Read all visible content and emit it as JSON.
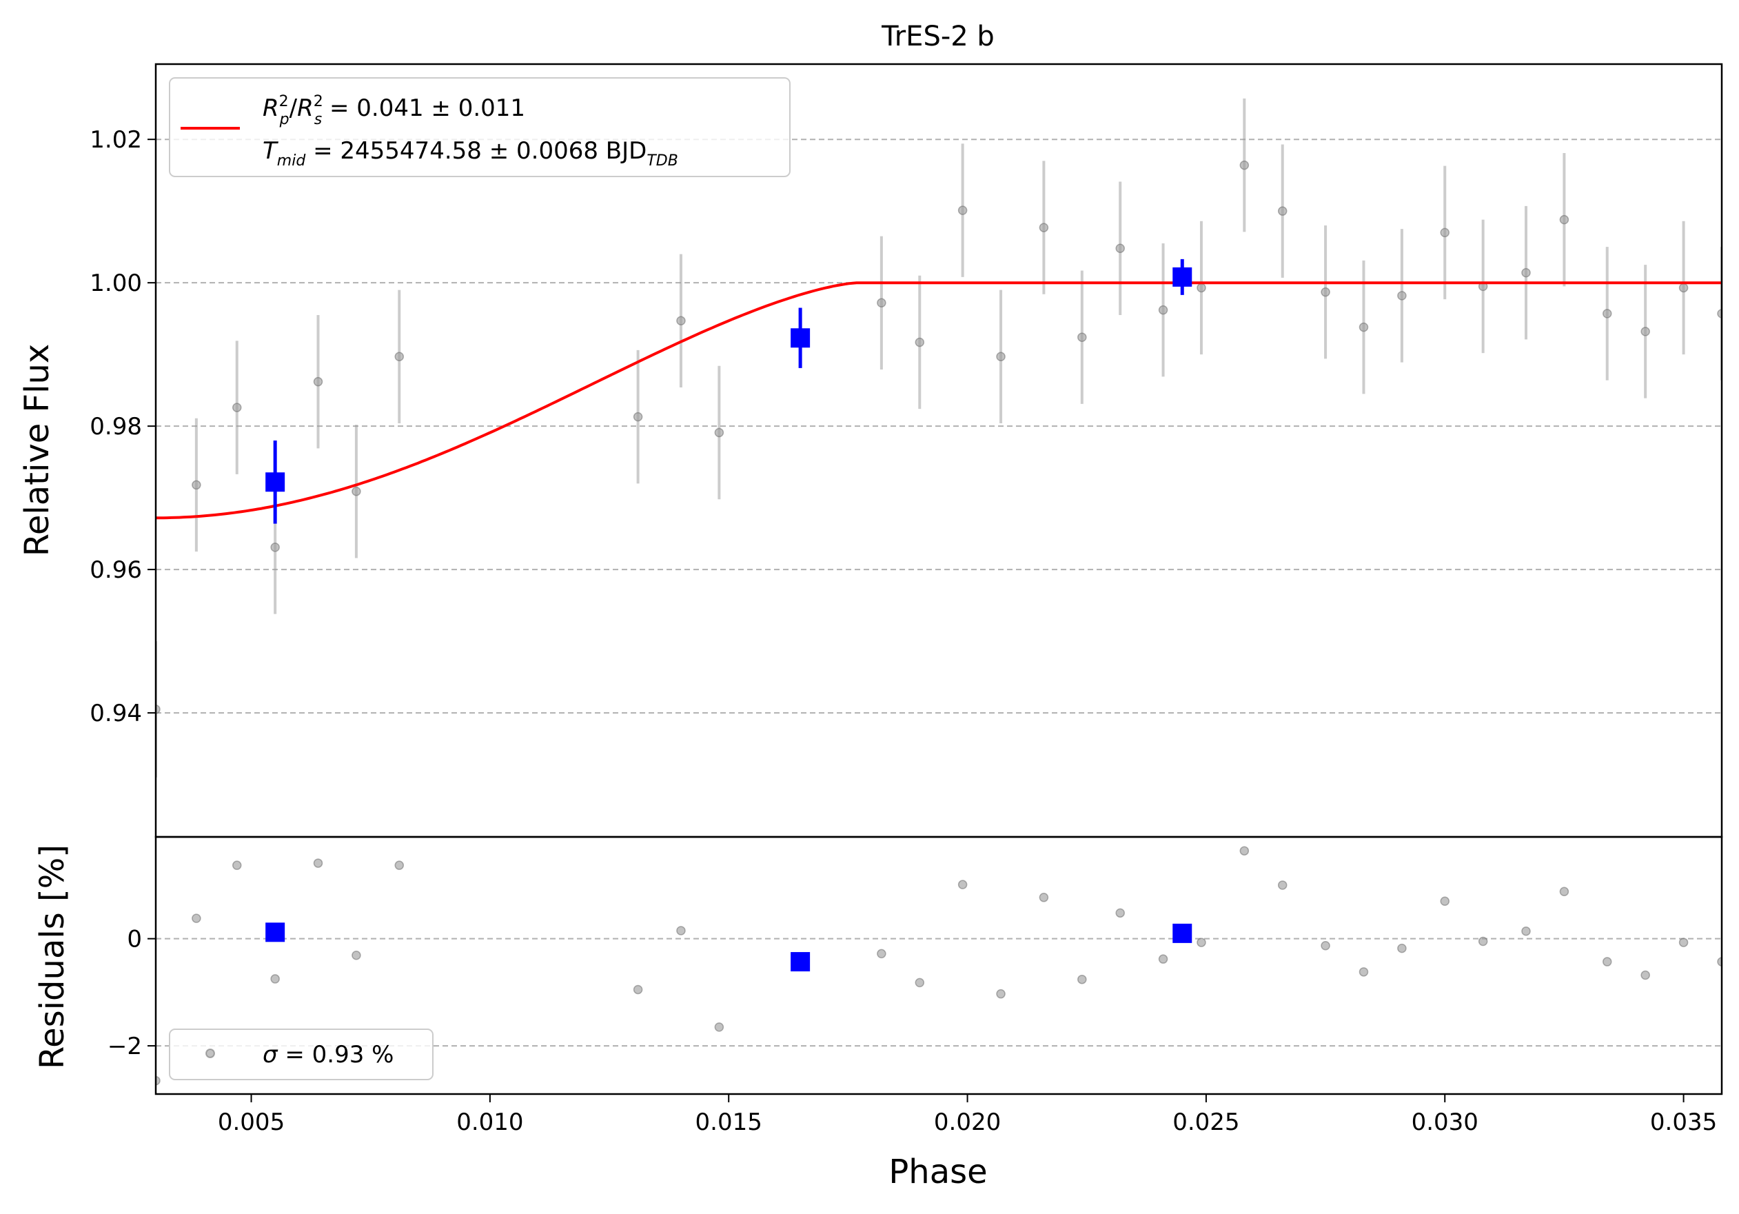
{
  "chart_data": [
    {
      "type": "scatter",
      "title": "TrES-2 b",
      "xlabel": "",
      "ylabel": "Relative Flux",
      "xlim": [
        0.003,
        0.0358
      ],
      "ylim": [
        0.9227,
        1.0305
      ],
      "grid": "horizontal dashed",
      "yticks": [
        0.94,
        0.96,
        0.98,
        1.0,
        1.02
      ],
      "ytick_labels": [
        "0.94",
        "0.96",
        "0.98",
        "1.00",
        "1.02"
      ],
      "legend": {
        "placement": "top-left",
        "model_line": {
          "color": "#ff0000",
          "rp_rs": {
            "lhs": "R",
            "sub_p": "p",
            "sup": "2",
            "slash": "/",
            "sub_s": "s",
            "value": " = 0.041 ± 0.011"
          },
          "tmid": {
            "lhs": "T",
            "sub": "mid",
            "value": " = 2455474.58 ± 0.0068 BJD",
            "unit_sub": "TDB"
          }
        }
      },
      "series": [
        {
          "name": "",
          "kind": "raw",
          "color": "#999999",
          "points": [
            {
              "x": 0.003,
              "y": 0.9405,
              "err": 0.0095
            },
            {
              "x": 0.00385,
              "y": 0.9718,
              "err": 0.0093
            },
            {
              "x": 0.0047,
              "y": 0.9826,
              "err": 0.0093
            },
            {
              "x": 0.0055,
              "y": 0.9631,
              "err": 0.0093
            },
            {
              "x": 0.0064,
              "y": 0.9862,
              "err": 0.0093
            },
            {
              "x": 0.0072,
              "y": 0.9709,
              "err": 0.0093
            },
            {
              "x": 0.0081,
              "y": 0.9897,
              "err": 0.0093
            },
            {
              "x": 0.0131,
              "y": 0.9813,
              "err": 0.0093
            },
            {
              "x": 0.014,
              "y": 0.9947,
              "err": 0.0093
            },
            {
              "x": 0.0148,
              "y": 0.9791,
              "err": 0.0093
            },
            {
              "x": 0.0182,
              "y": 0.9972,
              "err": 0.0093
            },
            {
              "x": 0.019,
              "y": 0.9917,
              "err": 0.0093
            },
            {
              "x": 0.0199,
              "y": 1.0101,
              "err": 0.0093
            },
            {
              "x": 0.0207,
              "y": 0.9897,
              "err": 0.0093
            },
            {
              "x": 0.0216,
              "y": 1.0077,
              "err": 0.0093
            },
            {
              "x": 0.0224,
              "y": 0.9924,
              "err": 0.0093
            },
            {
              "x": 0.0232,
              "y": 1.0048,
              "err": 0.0093
            },
            {
              "x": 0.0241,
              "y": 0.9962,
              "err": 0.0093
            },
            {
              "x": 0.0249,
              "y": 0.9993,
              "err": 0.0093
            },
            {
              "x": 0.0258,
              "y": 1.0164,
              "err": 0.0093
            },
            {
              "x": 0.0266,
              "y": 1.01,
              "err": 0.0093
            },
            {
              "x": 0.0275,
              "y": 0.9987,
              "err": 0.0093
            },
            {
              "x": 0.0283,
              "y": 0.9938,
              "err": 0.0093
            },
            {
              "x": 0.0291,
              "y": 0.9982,
              "err": 0.0093
            },
            {
              "x": 0.03,
              "y": 1.007,
              "err": 0.0093
            },
            {
              "x": 0.0308,
              "y": 0.9995,
              "err": 0.0093
            },
            {
              "x": 0.0317,
              "y": 1.0014,
              "err": 0.0093
            },
            {
              "x": 0.0325,
              "y": 1.0088,
              "err": 0.0093
            },
            {
              "x": 0.0334,
              "y": 0.9957,
              "err": 0.0093
            },
            {
              "x": 0.0342,
              "y": 0.9932,
              "err": 0.0093
            },
            {
              "x": 0.035,
              "y": 0.9993,
              "err": 0.0093
            },
            {
              "x": 0.0358,
              "y": 0.9957,
              "err": 0.0093
            }
          ]
        },
        {
          "name": "",
          "kind": "binned",
          "color": "#0000ff",
          "points": [
            {
              "x": 0.0055,
              "y": 0.9722,
              "err": 0.0058
            },
            {
              "x": 0.0165,
              "y": 0.9923,
              "err": 0.0042
            },
            {
              "x": 0.0245,
              "y": 1.0008,
              "err": 0.0025
            }
          ]
        },
        {
          "name": "",
          "kind": "model",
          "color": "#ff0000",
          "model": {
            "depth": 0.0328,
            "t_end": 0.0177,
            "t_ref": 0.003
          }
        }
      ]
    },
    {
      "type": "scatter",
      "title": "",
      "xlabel": "Phase",
      "ylabel": "Residuals [%]",
      "xlim": [
        0.003,
        0.0358
      ],
      "ylim": [
        -2.9,
        1.9
      ],
      "grid": "horizontal dashed",
      "xticks": [
        0.005,
        0.01,
        0.015,
        0.02,
        0.025,
        0.03,
        0.035
      ],
      "xtick_labels": [
        "0.005",
        "0.010",
        "0.015",
        "0.020",
        "0.025",
        "0.030",
        "0.035"
      ],
      "yticks": [
        -2,
        0
      ],
      "ytick_labels": [
        "−2",
        "0"
      ],
      "legend": {
        "placement": "bottom-left",
        "marker_color": "#999999",
        "label_sigma": "σ",
        "label_value": " = 0.93 %"
      },
      "series": [
        {
          "name": "",
          "kind": "raw",
          "color": "#999999",
          "points": [
            {
              "x": 0.003,
              "y": -2.65
            },
            {
              "x": 0.00385,
              "y": 0.38
            },
            {
              "x": 0.0047,
              "y": 1.37
            },
            {
              "x": 0.0055,
              "y": -0.75
            },
            {
              "x": 0.0064,
              "y": 1.41
            },
            {
              "x": 0.0072,
              "y": -0.31
            },
            {
              "x": 0.0081,
              "y": 1.37
            },
            {
              "x": 0.0131,
              "y": -0.95
            },
            {
              "x": 0.014,
              "y": 0.15
            },
            {
              "x": 0.0148,
              "y": -1.65
            },
            {
              "x": 0.0182,
              "y": -0.28
            },
            {
              "x": 0.019,
              "y": -0.82
            },
            {
              "x": 0.0199,
              "y": 1.01
            },
            {
              "x": 0.0207,
              "y": -1.03
            },
            {
              "x": 0.0216,
              "y": 0.77
            },
            {
              "x": 0.0224,
              "y": -0.76
            },
            {
              "x": 0.0232,
              "y": 0.48
            },
            {
              "x": 0.0241,
              "y": -0.38
            },
            {
              "x": 0.0249,
              "y": -0.07
            },
            {
              "x": 0.0258,
              "y": 1.64
            },
            {
              "x": 0.0266,
              "y": 1.0
            },
            {
              "x": 0.0275,
              "y": -0.13
            },
            {
              "x": 0.0283,
              "y": -0.62
            },
            {
              "x": 0.0291,
              "y": -0.18
            },
            {
              "x": 0.03,
              "y": 0.7
            },
            {
              "x": 0.0308,
              "y": -0.05
            },
            {
              "x": 0.0317,
              "y": 0.14
            },
            {
              "x": 0.0325,
              "y": 0.88
            },
            {
              "x": 0.0334,
              "y": -0.43
            },
            {
              "x": 0.0342,
              "y": -0.68
            },
            {
              "x": 0.035,
              "y": -0.07
            },
            {
              "x": 0.0358,
              "y": -0.43
            }
          ]
        },
        {
          "name": "",
          "kind": "binned",
          "color": "#0000ff",
          "points": [
            {
              "x": 0.0055,
              "y": 0.12
            },
            {
              "x": 0.0165,
              "y": -0.43
            },
            {
              "x": 0.0245,
              "y": 0.1
            }
          ]
        }
      ]
    }
  ]
}
